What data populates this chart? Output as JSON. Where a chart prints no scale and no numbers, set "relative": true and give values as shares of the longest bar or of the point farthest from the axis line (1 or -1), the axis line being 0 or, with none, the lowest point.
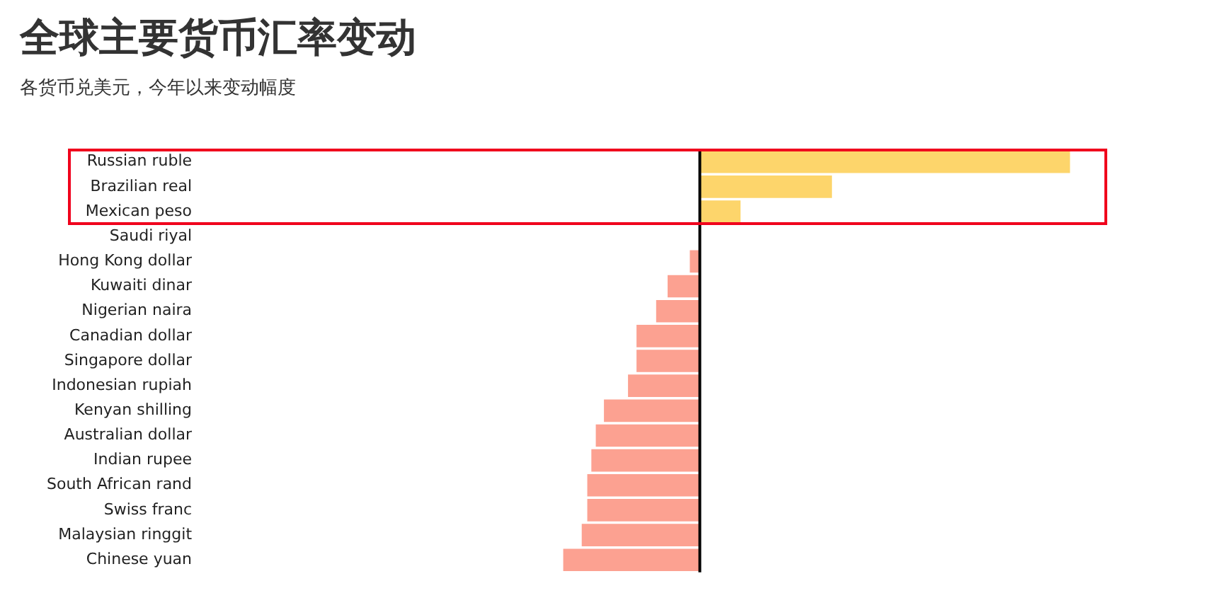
{
  "chart_data": {
    "type": "bar",
    "orientation": "horizontal",
    "relative": true,
    "title": "全球主要货币汇率变动",
    "subtitle": "各货币兑美元，今年以来变动幅度",
    "categories": [
      "Russian ruble",
      "Brazilian real",
      "Mexican peso",
      "Saudi riyal",
      "Hong Kong dollar",
      "Kuwaiti dinar",
      "Nigerian naira",
      "Canadian dollar",
      "Singapore dollar",
      "Indonesian rupiah",
      "Kenyan shilling",
      "Australian dollar",
      "Indian rupee",
      "South African rand",
      "Swiss franc",
      "Malaysian ringgit",
      "Chinese yuan"
    ],
    "values": [
      1,
      0.357,
      0.11,
      0,
      -0.027,
      -0.087,
      -0.118,
      -0.171,
      -0.171,
      -0.194,
      -0.259,
      -0.281,
      -0.293,
      -0.304,
      -0.304,
      -0.319,
      -0.369
    ],
    "colors": [
      "#fdd56b",
      "#fdd56b",
      "#fdd56b",
      "#fca191",
      "#fca191",
      "#fca191",
      "#fca191",
      "#fca191",
      "#fca191",
      "#fca191",
      "#fca191",
      "#fca191",
      "#fca191",
      "#fca191",
      "#fca191",
      "#fca191",
      "#fca191"
    ],
    "tick_labels": "y",
    "legend": false
  }
}
